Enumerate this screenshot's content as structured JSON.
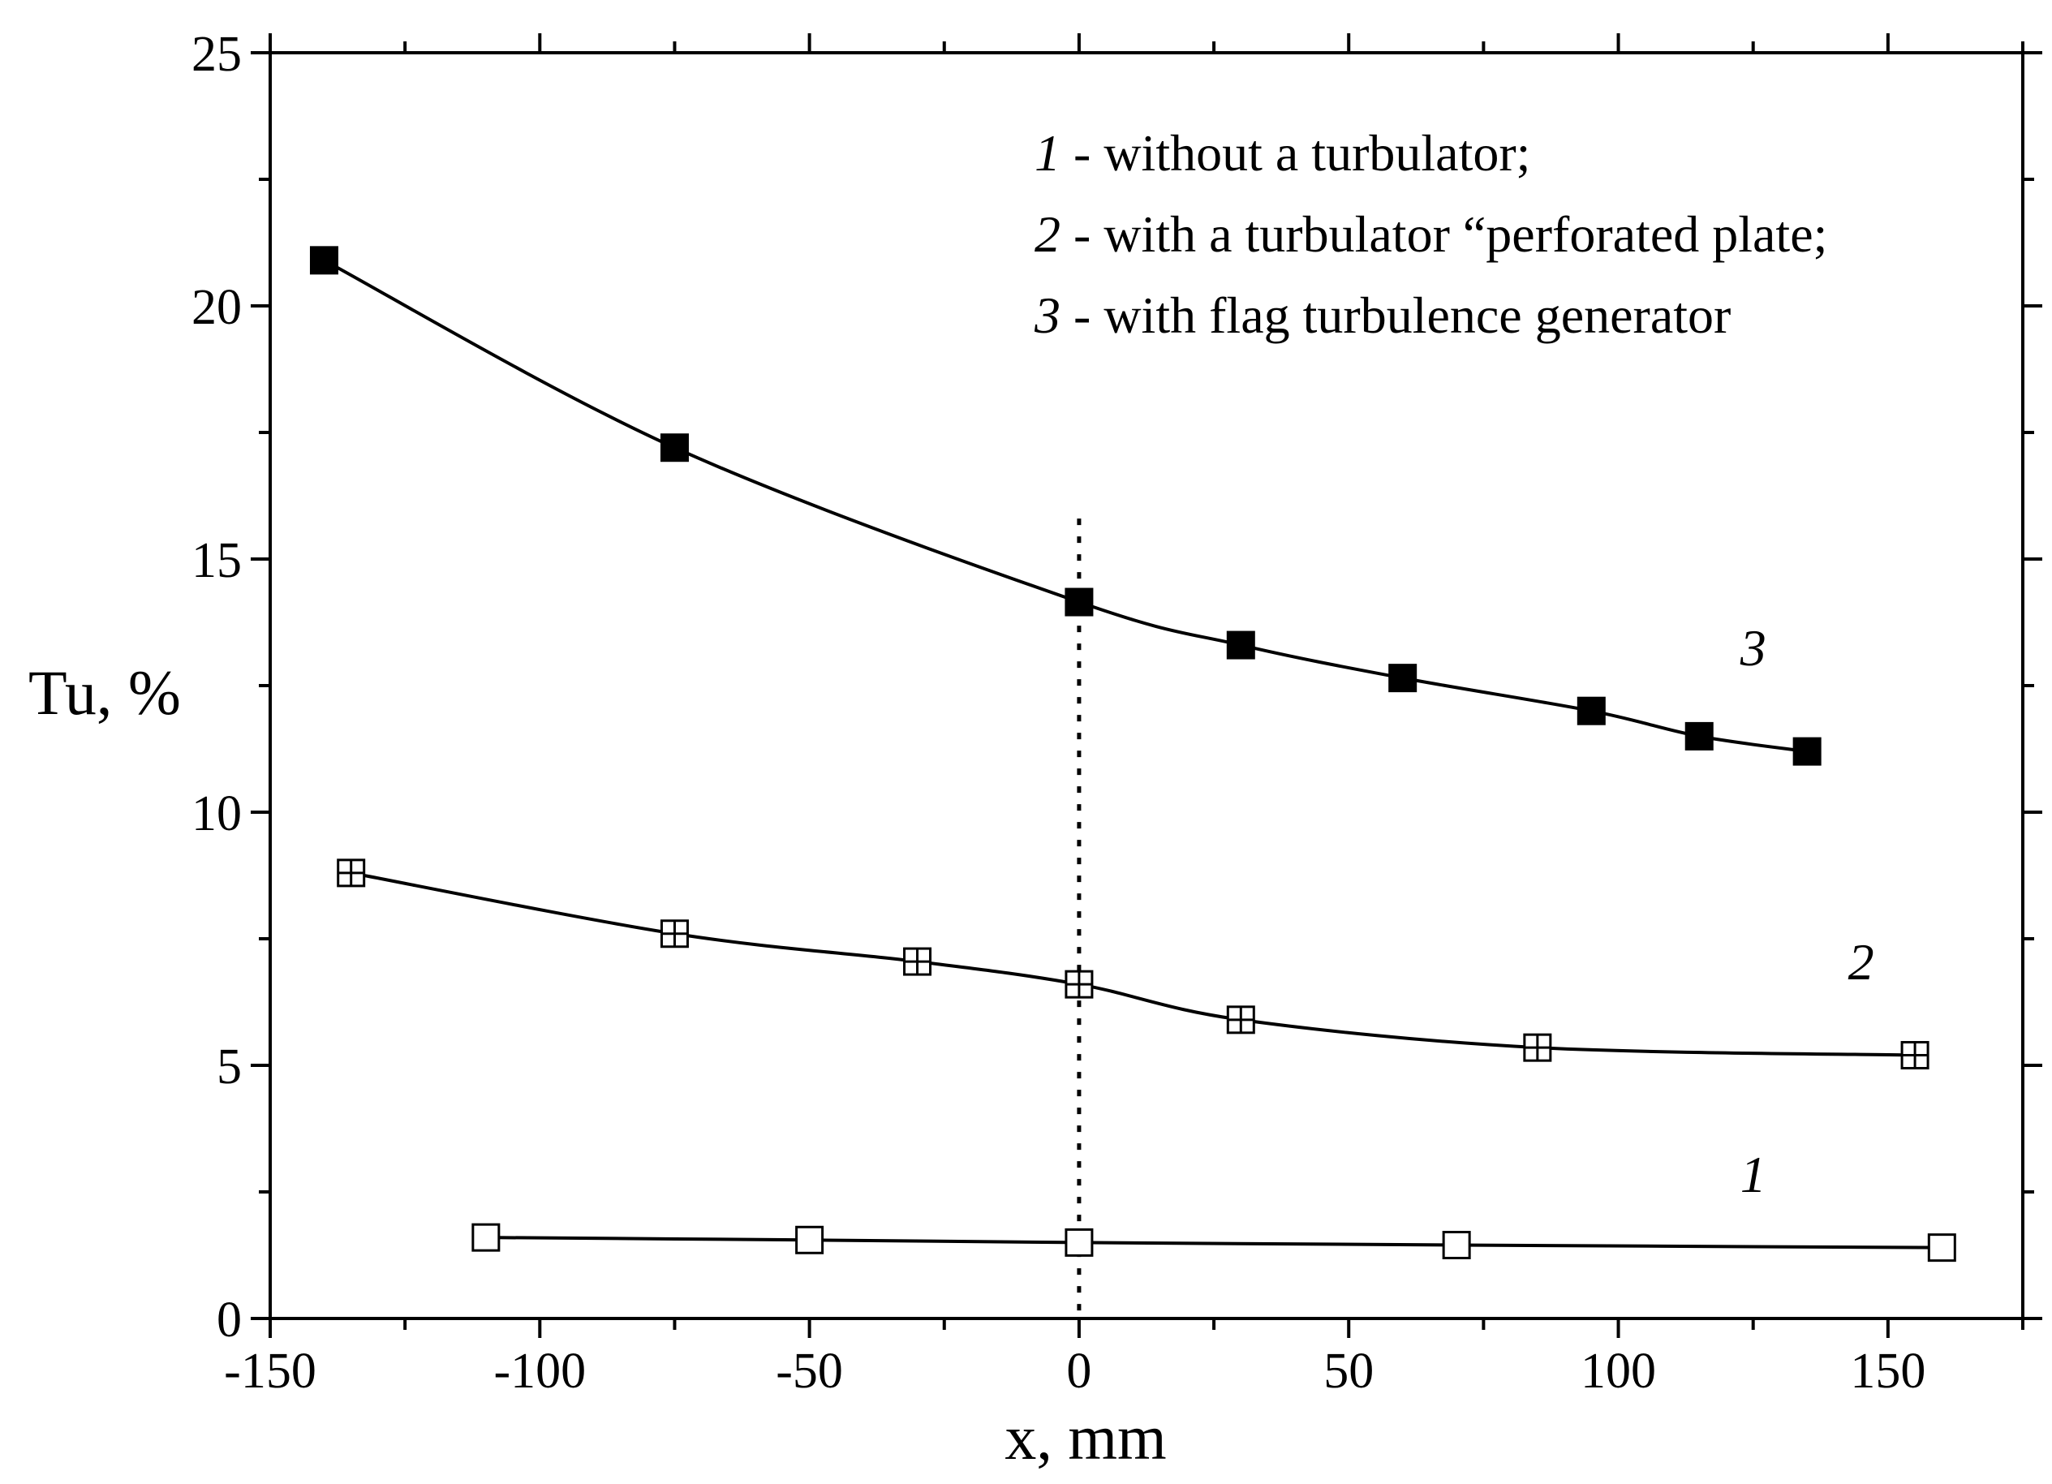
{
  "chart_data": {
    "type": "line",
    "xlabel": "x, mm",
    "ylabel": "Tu, %",
    "xlim": [
      -150,
      175
    ],
    "ylim": [
      0,
      25
    ],
    "x_ticks": [
      -150,
      -100,
      -50,
      0,
      50,
      100,
      150
    ],
    "x_tick_labels": [
      "-150",
      "-100",
      "-50",
      "0",
      "50",
      "100",
      "150"
    ],
    "y_ticks": [
      0,
      5,
      10,
      15,
      20,
      25
    ],
    "y_tick_labels": [
      "0",
      "5",
      "10",
      "15",
      "20",
      "25"
    ],
    "reference_line_x": 0,
    "legend": [
      {
        "number": "1",
        "text": " - without a turbulator;"
      },
      {
        "number": "2",
        "text": " - with a turbulator “perforated plate;"
      },
      {
        "number": "3",
        "text": " - with flag turbulence generator"
      }
    ],
    "series": [
      {
        "name": "1",
        "label": "1",
        "label_position": [
          125,
          2.5
        ],
        "marker": "open-square",
        "x": [
          -110,
          -50,
          0,
          70,
          160
        ],
        "values": [
          1.6,
          1.55,
          1.5,
          1.45,
          1.4
        ]
      },
      {
        "name": "2",
        "label": "2",
        "label_position": [
          145,
          6.7
        ],
        "marker": "crossed-square",
        "x": [
          -135,
          -75,
          -30,
          0,
          30,
          85,
          155
        ],
        "values": [
          8.8,
          7.6,
          7.05,
          6.6,
          5.9,
          5.35,
          5.2
        ]
      },
      {
        "name": "3",
        "label": "3",
        "label_position": [
          125,
          12.9
        ],
        "marker": "filled-square",
        "x": [
          -140,
          -75,
          0,
          30,
          60,
          95,
          115,
          135
        ],
        "values": [
          20.9,
          17.2,
          14.15,
          13.3,
          12.65,
          12.0,
          11.5,
          11.2
        ]
      }
    ]
  }
}
